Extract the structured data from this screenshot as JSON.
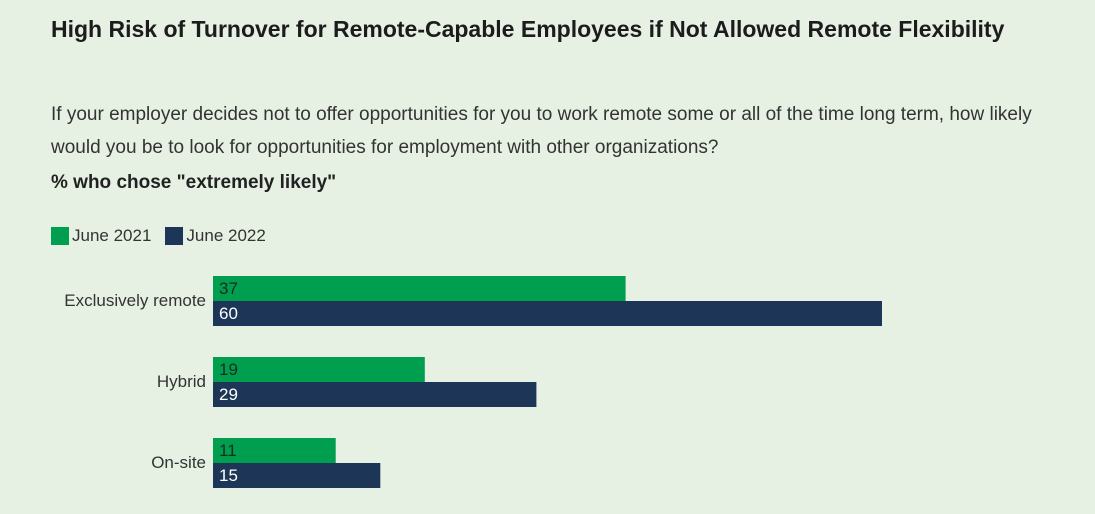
{
  "header": {
    "title": "High Risk of Turnover for Remote-Capable Employees if Not Allowed Remote Flexibility",
    "question": "If your employer decides not to offer opportunities for you to work remote some or all of the time long term, how likely would you be to look for opportunities for employment with other organizations?",
    "metric": "% who chose \"extremely likely\""
  },
  "chart_data": {
    "type": "bar",
    "orientation": "horizontal",
    "categories": [
      "Exclusively remote",
      "Hybrid",
      "On-site"
    ],
    "series": [
      {
        "name": "June 2021",
        "color": "#009e4f",
        "values": [
          37,
          19,
          11
        ]
      },
      {
        "name": "June 2022",
        "color": "#1d3557",
        "values": [
          60,
          29,
          15
        ]
      }
    ],
    "data_labels": true,
    "legend_position": "top-left",
    "grid": false
  }
}
